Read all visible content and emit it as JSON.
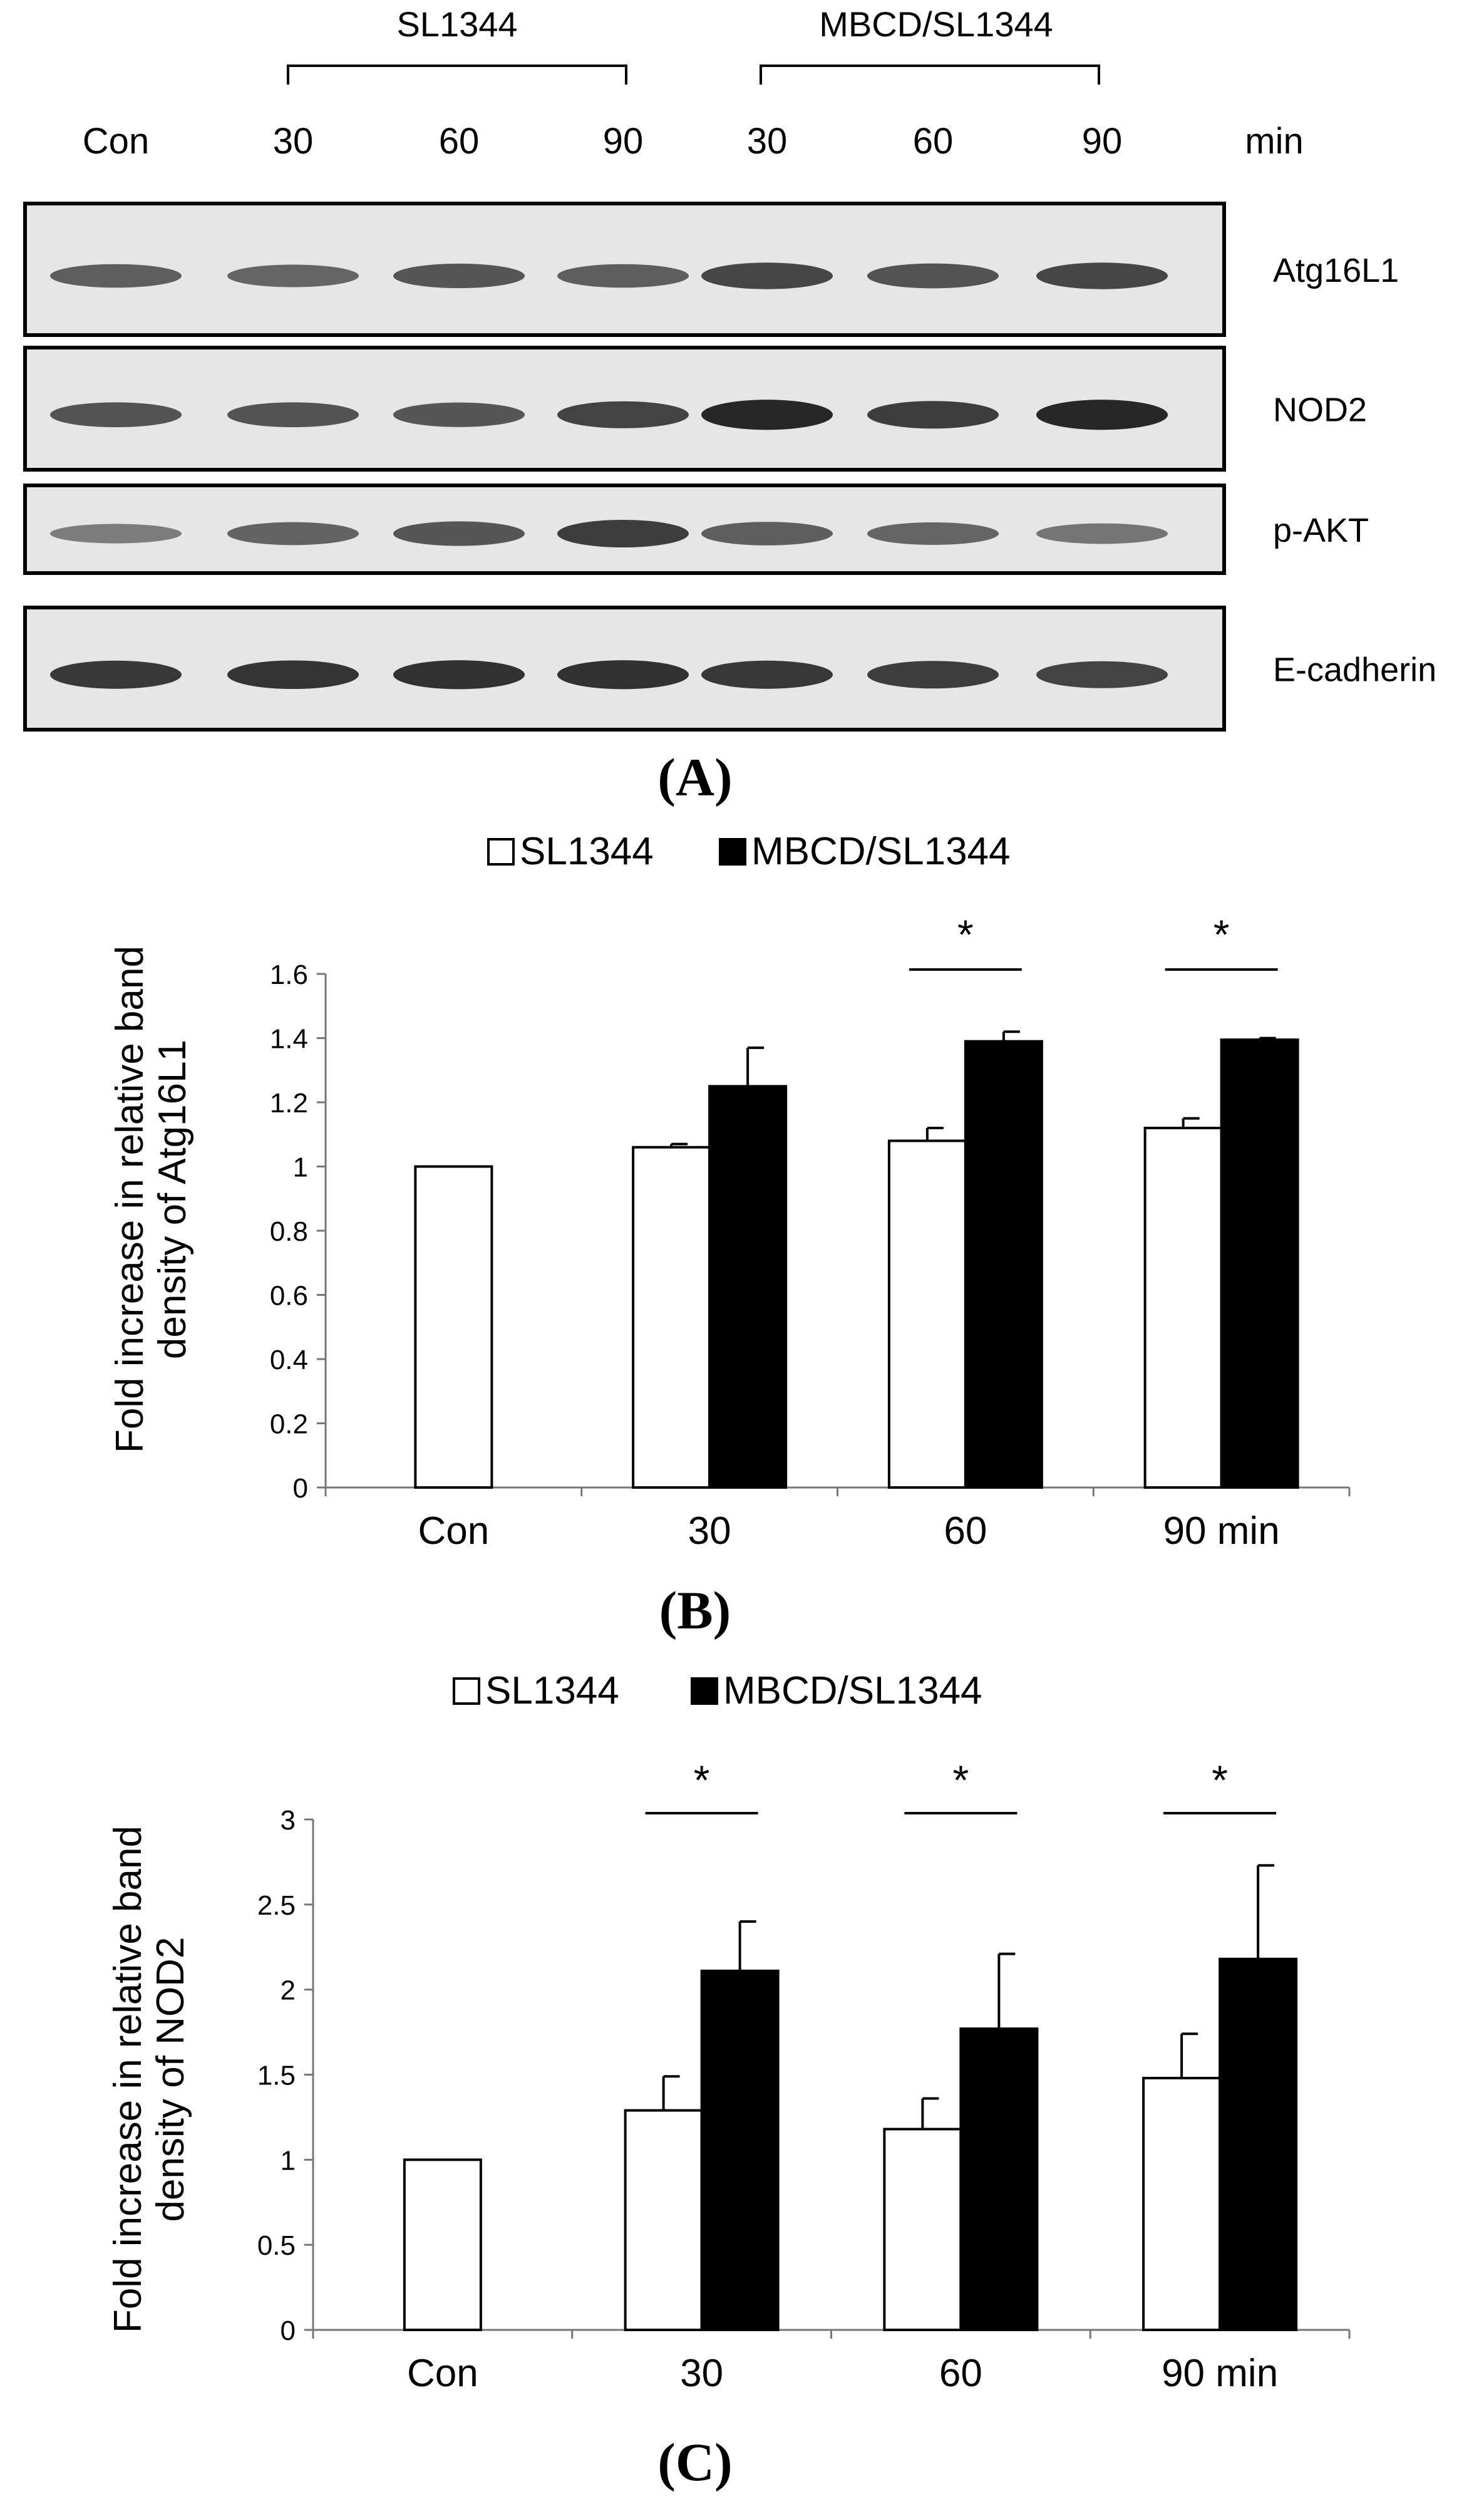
{
  "blot": {
    "group_labels": [
      "SL1344",
      "MBCD/SL1344"
    ],
    "lane_labels": [
      "Con",
      "30",
      "60",
      "90",
      "30",
      "60",
      "90"
    ],
    "time_unit": "min",
    "rows": [
      {
        "name": "Atg16L1",
        "intensity": [
          0.55,
          0.5,
          0.6,
          0.55,
          0.7,
          0.62,
          0.7
        ]
      },
      {
        "name": "NOD2",
        "intensity": [
          0.62,
          0.62,
          0.6,
          0.72,
          0.88,
          0.75,
          0.88
        ]
      },
      {
        "name": "p-AKT",
        "intensity": [
          0.35,
          0.52,
          0.6,
          0.75,
          0.55,
          0.5,
          0.4
        ]
      },
      {
        "name": "E-cadherin",
        "intensity": [
          0.78,
          0.8,
          0.82,
          0.82,
          0.78,
          0.75,
          0.72
        ]
      }
    ],
    "panel_label": "(A)"
  },
  "chart_data": [
    {
      "type": "bar",
      "panel_label": "(B)",
      "categories": [
        "Con",
        "30",
        "60",
        "90 min"
      ],
      "series": [
        {
          "name": "SL1344",
          "fill": "#ffffff",
          "values": [
            1.0,
            1.06,
            1.08,
            1.12
          ],
          "errors": [
            0,
            0.01,
            0.04,
            0.03
          ]
        },
        {
          "name": "MBCD/SL1344",
          "fill": "#000000",
          "values": [
            null,
            1.25,
            1.39,
            1.395
          ],
          "errors": [
            0,
            0.12,
            0.03,
            0.005
          ]
        }
      ],
      "ylabel_lines": [
        "Fold increase in relative band",
        "density of Atg16L1"
      ],
      "ylim": [
        0,
        1.6
      ],
      "yticks": [
        0,
        0.2,
        0.4,
        0.6,
        0.8,
        1,
        1.2,
        1.4,
        1.6
      ],
      "ytick_labels": [
        "0",
        "0.2",
        "0.4",
        "0.6",
        "0.8",
        "1",
        "1.2",
        "1.4",
        "1.6"
      ],
      "significance": [
        {
          "category": "60",
          "mark": "*"
        },
        {
          "category": "90 min",
          "mark": "*"
        }
      ],
      "legend_position": "top-center",
      "grid": false
    },
    {
      "type": "bar",
      "panel_label": "(C)",
      "categories": [
        "Con",
        "30",
        "60",
        "90 min"
      ],
      "series": [
        {
          "name": "SL1344",
          "fill": "#ffffff",
          "values": [
            1.0,
            1.29,
            1.18,
            1.48
          ],
          "errors": [
            0,
            0.2,
            0.18,
            0.26
          ]
        },
        {
          "name": "MBCD/SL1344",
          "fill": "#000000",
          "values": [
            null,
            2.11,
            1.77,
            2.18
          ],
          "errors": [
            0,
            0.29,
            0.44,
            0.55
          ]
        }
      ],
      "ylabel_lines": [
        "Fold increase in relative band",
        "density of NOD2"
      ],
      "ylim": [
        0,
        3
      ],
      "yticks": [
        0,
        0.5,
        1,
        1.5,
        2,
        2.5,
        3
      ],
      "ytick_labels": [
        "0",
        "0.5",
        "1",
        "1.5",
        "2",
        "2.5",
        "3"
      ],
      "significance": [
        {
          "category": "30",
          "mark": "*"
        },
        {
          "category": "60",
          "mark": "*"
        },
        {
          "category": "90 min",
          "mark": "*"
        }
      ],
      "legend_position": "top-center",
      "grid": false
    }
  ]
}
